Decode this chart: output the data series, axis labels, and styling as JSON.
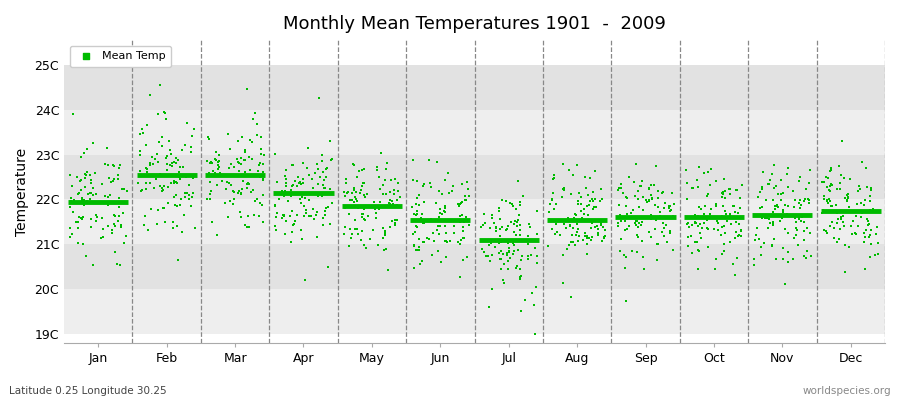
{
  "title": "Monthly Mean Temperatures 1901  -  2009",
  "ylabel": "Temperature",
  "xlabel_bottom": "Latitude 0.25 Longitude 30.25",
  "watermark": "worldspecies.org",
  "legend_label": "Mean Temp",
  "months": [
    "Jan",
    "Feb",
    "Mar",
    "Apr",
    "May",
    "Jun",
    "Jul",
    "Aug",
    "Sep",
    "Oct",
    "Nov",
    "Dec"
  ],
  "month_means": [
    21.95,
    22.55,
    22.55,
    22.15,
    21.85,
    21.55,
    21.1,
    21.55,
    21.6,
    21.6,
    21.65,
    21.75
  ],
  "month_stds": [
    0.6,
    0.7,
    0.6,
    0.55,
    0.55,
    0.55,
    0.65,
    0.55,
    0.5,
    0.5,
    0.5,
    0.55
  ],
  "ylim_min": 18.8,
  "ylim_max": 25.55,
  "dot_color": "#00bb00",
  "bg_colors": [
    "#eeeeee",
    "#e2e2e2"
  ],
  "marker_size": 3,
  "mean_line_lw": 3.5,
  "seed": 12345
}
